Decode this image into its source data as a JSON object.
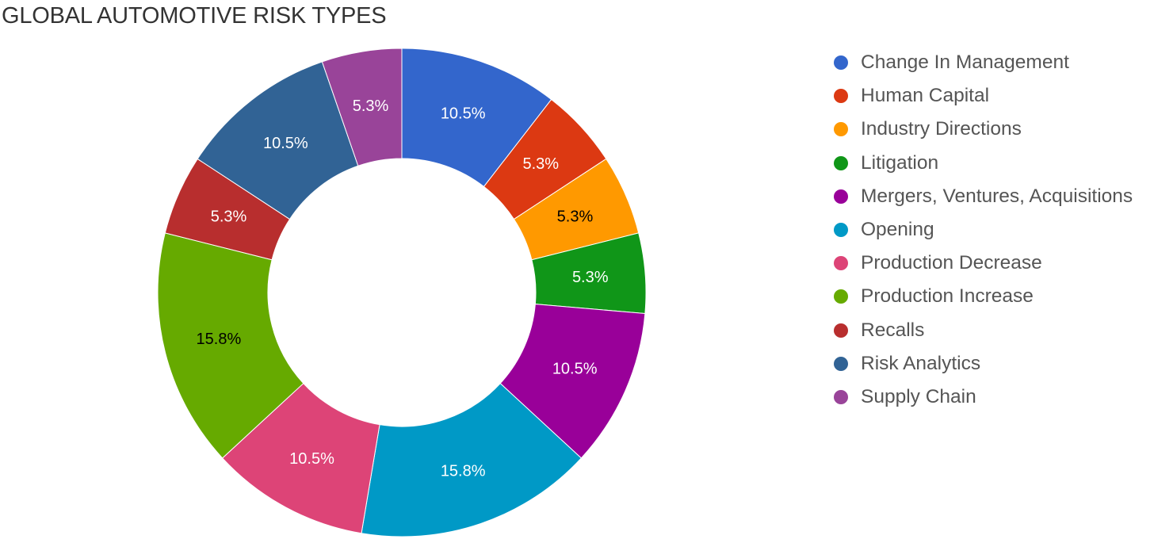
{
  "chart_data": {
    "type": "pie",
    "donut": true,
    "title": "GLOBAL AUTOMOTIVE RISK TYPES",
    "legend_position": "right",
    "series": [
      {
        "name": "Change In Management",
        "value": 10.5,
        "label": "10.5%",
        "color": "#3366cc",
        "label_color": "#ffffff"
      },
      {
        "name": "Human Capital",
        "value": 5.3,
        "label": "5.3%",
        "color": "#dc3912",
        "label_color": "#ffffff"
      },
      {
        "name": "Industry Directions",
        "value": 5.3,
        "label": "5.3%",
        "color": "#ff9900",
        "label_color": "#000000"
      },
      {
        "name": "Litigation",
        "value": 5.3,
        "label": "5.3%",
        "color": "#109618",
        "label_color": "#ffffff"
      },
      {
        "name": "Mergers, Ventures, Acquisitions",
        "value": 10.5,
        "label": "10.5%",
        "color": "#990099",
        "label_color": "#ffffff"
      },
      {
        "name": "Opening",
        "value": 15.8,
        "label": "15.8%",
        "color": "#0099c6",
        "label_color": "#ffffff"
      },
      {
        "name": "Production Decrease",
        "value": 10.5,
        "label": "10.5%",
        "color": "#dd4477",
        "label_color": "#ffffff"
      },
      {
        "name": "Production Increase",
        "value": 15.8,
        "label": "15.8%",
        "color": "#66aa00",
        "label_color": "#000000"
      },
      {
        "name": "Recalls",
        "value": 5.3,
        "label": "5.3%",
        "color": "#b82e2e",
        "label_color": "#ffffff"
      },
      {
        "name": "Risk Analytics",
        "value": 10.5,
        "label": "10.5%",
        "color": "#316395",
        "label_color": "#ffffff"
      },
      {
        "name": "Supply Chain",
        "value": 5.3,
        "label": "5.3%",
        "color": "#994499",
        "label_color": "#ffffff"
      }
    ]
  }
}
